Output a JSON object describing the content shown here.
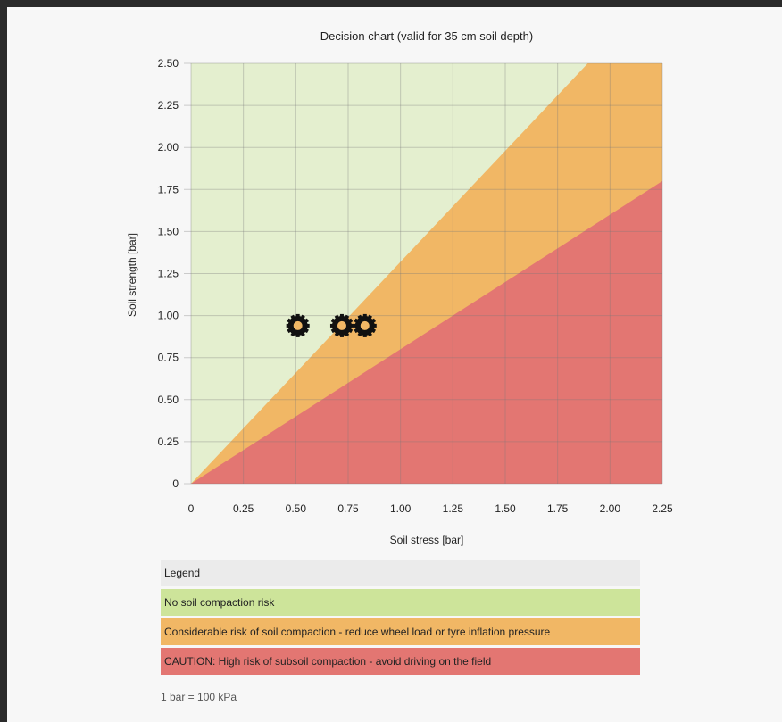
{
  "chart_data": {
    "type": "scatter",
    "title": "Decision chart (valid for 35 cm soil depth)",
    "xlabel": "Soil stress [bar]",
    "ylabel": "Soil strength [bar]",
    "xlim": [
      0,
      2.25
    ],
    "ylim": [
      0,
      2.5
    ],
    "xticks": [
      "0",
      "0.25",
      "0.50",
      "0.75",
      "1.00",
      "1.25",
      "1.50",
      "1.75",
      "2.00",
      "2.25"
    ],
    "yticks": [
      "0",
      "0.25",
      "0.50",
      "0.75",
      "1.00",
      "1.25",
      "1.50",
      "1.75",
      "2.00",
      "2.25",
      "2.50"
    ],
    "grid": true,
    "regions": [
      {
        "name": "No soil compaction risk",
        "color": "#e4efcf",
        "boundary": "above y = 1.32x"
      },
      {
        "name": "Considerable risk of soil compaction",
        "color": "#f1b765",
        "boundary": "between y = 0.8x and y = 1.32x"
      },
      {
        "name": "High risk of subsoil compaction",
        "color": "#e37672",
        "boundary": "below y = 0.8x"
      }
    ],
    "points": [
      {
        "x": 0.51,
        "y": 0.94
      },
      {
        "x": 0.72,
        "y": 0.94
      },
      {
        "x": 0.83,
        "y": 0.94
      }
    ]
  },
  "legend": {
    "header": "Legend",
    "rows": [
      {
        "label": "No soil compaction risk",
        "color": "#cde49a"
      },
      {
        "label": "Considerable risk of soil compaction - reduce wheel load or tyre inflation pressure",
        "color": "#f1b765"
      },
      {
        "label": "CAUTION: High risk of subsoil compaction - avoid driving on the field",
        "color": "#e37672"
      }
    ]
  },
  "note": "1 bar = 100 kPa"
}
